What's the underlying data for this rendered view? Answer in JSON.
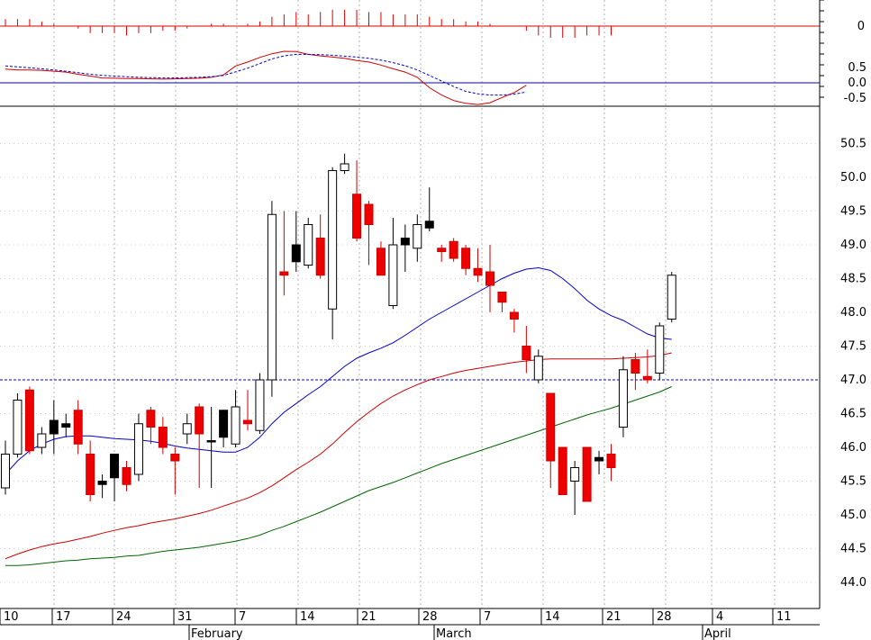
{
  "chart_data": [
    {
      "type": "bar",
      "panel": "histogram",
      "y_labels": [
        "0"
      ],
      "color": "#e00000",
      "values": [
        0.03,
        0.03,
        0.03,
        0.02,
        0.01,
        0,
        -0.01,
        -0.03,
        -0.03,
        -0.03,
        -0.04,
        -0.03,
        -0.03,
        -0.02,
        -0.02,
        -0.01,
        0,
        0.01,
        0.01,
        0,
        0.01,
        0.02,
        0.04,
        0.05,
        0.06,
        0.05,
        0.06,
        0.07,
        0.07,
        0.07,
        0.06,
        0.06,
        0.05,
        0.05,
        0.05,
        0.04,
        0.03,
        0.03,
        0.02,
        0.02,
        0.01,
        0,
        0,
        -0.02,
        -0.04,
        -0.05,
        -0.05,
        -0.05,
        -0.04,
        -0.04,
        -0.04
      ]
    },
    {
      "type": "line",
      "panel": "macd",
      "y_labels": [
        "0.5",
        "0.0",
        "-0.5"
      ],
      "ylim": [
        -1.3,
        1.5
      ],
      "series": [
        {
          "role": "macd",
          "color": "#cc0000",
          "values": [
            0.45,
            0.42,
            0.42,
            0.41,
            0.38,
            0.35,
            0.28,
            0.22,
            0.16,
            0.15,
            0.14,
            0.14,
            0.13,
            0.12,
            0.13,
            0.14,
            0.15,
            0.18,
            0.26,
            0.55,
            0.68,
            0.83,
            0.95,
            1.03,
            1.02,
            0.93,
            0.88,
            0.84,
            0.8,
            0.73,
            0.68,
            0.58,
            0.46,
            0.35,
            0.18,
            -0.16,
            -0.4,
            -0.58,
            -0.67,
            -0.71,
            -0.65,
            -0.48,
            -0.32,
            -0.08
          ]
        },
        {
          "role": "signal",
          "color": "#0000cc",
          "style": "dashed",
          "values": [
            0.55,
            0.52,
            0.49,
            0.46,
            0.42,
            0.38,
            0.33,
            0.28,
            0.24,
            0.22,
            0.2,
            0.18,
            0.17,
            0.16,
            0.16,
            0.17,
            0.18,
            0.2,
            0.24,
            0.36,
            0.48,
            0.63,
            0.78,
            0.88,
            0.93,
            0.93,
            0.92,
            0.9,
            0.87,
            0.84,
            0.8,
            0.74,
            0.66,
            0.56,
            0.42,
            0.24,
            0.06,
            -0.12,
            -0.28,
            -0.36,
            -0.4,
            -0.4,
            -0.37,
            -0.3
          ]
        }
      ]
    },
    {
      "type": "candlestick",
      "panel": "price",
      "x_tick_labels": [
        "10",
        "17",
        "24",
        "31",
        "7",
        "14",
        "21",
        "28",
        "7",
        "14",
        "21",
        "28",
        "4",
        "11"
      ],
      "month_labels": [
        "February",
        "March",
        "April"
      ],
      "y_tick_labels": [
        "44.0",
        "44.5",
        "45.0",
        "45.5",
        "46.0",
        "46.5",
        "47.0",
        "47.5",
        "48.0",
        "48.5",
        "49.0",
        "49.5",
        "50.0",
        "50.5"
      ],
      "ylim": [
        43.65,
        50.85
      ],
      "reference_line": {
        "y": 47.0,
        "color": "#0000cc",
        "style": "dotted"
      },
      "candles": [
        {
          "d": 0,
          "o": 45.4,
          "h": 46.1,
          "l": 45.3,
          "c": 45.9,
          "color": "white"
        },
        {
          "d": 1,
          "o": 45.9,
          "h": 46.8,
          "l": 45.85,
          "c": 46.7,
          "color": "white"
        },
        {
          "d": 2,
          "o": 46.85,
          "h": 46.9,
          "l": 45.9,
          "c": 45.95,
          "color": "red"
        },
        {
          "d": 3,
          "o": 46.0,
          "h": 46.3,
          "l": 45.9,
          "c": 46.2,
          "color": "white"
        },
        {
          "d": 4,
          "o": 46.4,
          "h": 46.7,
          "l": 45.9,
          "c": 46.2,
          "color": "black"
        },
        {
          "d": 5,
          "o": 46.35,
          "h": 46.5,
          "l": 46.15,
          "c": 46.3,
          "color": "black"
        },
        {
          "d": 6,
          "o": 46.55,
          "h": 46.7,
          "l": 45.9,
          "c": 46.05,
          "color": "red"
        },
        {
          "d": 7,
          "o": 45.9,
          "h": 46.1,
          "l": 45.2,
          "c": 45.3,
          "color": "red"
        },
        {
          "d": 8,
          "o": 45.5,
          "h": 45.6,
          "l": 45.25,
          "c": 45.45,
          "color": "black"
        },
        {
          "d": 9,
          "o": 45.9,
          "h": 45.9,
          "l": 45.2,
          "c": 45.55,
          "color": "black"
        },
        {
          "d": 10,
          "o": 45.7,
          "h": 45.8,
          "l": 45.35,
          "c": 45.45,
          "color": "red"
        },
        {
          "d": 11,
          "o": 45.6,
          "h": 46.5,
          "l": 45.5,
          "c": 46.35,
          "color": "white"
        },
        {
          "d": 12,
          "o": 46.55,
          "h": 46.6,
          "l": 46.05,
          "c": 46.3,
          "color": "red"
        },
        {
          "d": 13,
          "o": 46.3,
          "h": 46.45,
          "l": 45.9,
          "c": 46.0,
          "color": "red"
        },
        {
          "d": 14,
          "o": 45.9,
          "h": 46.0,
          "l": 45.3,
          "c": 45.8,
          "color": "red"
        },
        {
          "d": 15,
          "o": 46.2,
          "h": 46.5,
          "l": 46.05,
          "c": 46.35,
          "color": "white"
        },
        {
          "d": 16,
          "o": 46.6,
          "h": 46.65,
          "l": 45.4,
          "c": 46.2,
          "color": "red"
        },
        {
          "d": 17,
          "o": 46.1,
          "h": 46.6,
          "l": 45.4,
          "c": 46.1,
          "color": "black"
        },
        {
          "d": 18,
          "o": 46.55,
          "h": 46.55,
          "l": 46.0,
          "c": 46.15,
          "color": "black"
        },
        {
          "d": 19,
          "o": 46.05,
          "h": 46.85,
          "l": 46.0,
          "c": 46.6,
          "color": "white"
        },
        {
          "d": 20,
          "o": 46.4,
          "h": 46.85,
          "l": 46.25,
          "c": 46.35,
          "color": "red"
        },
        {
          "d": 21,
          "o": 46.25,
          "h": 47.1,
          "l": 46.2,
          "c": 47.0,
          "color": "white"
        },
        {
          "d": 22,
          "o": 47.0,
          "h": 49.65,
          "l": 46.75,
          "c": 49.45,
          "color": "white"
        },
        {
          "d": 23,
          "o": 48.6,
          "h": 49.5,
          "l": 48.25,
          "c": 48.55,
          "color": "red"
        },
        {
          "d": 24,
          "o": 49.0,
          "h": 49.5,
          "l": 48.6,
          "c": 48.75,
          "color": "black"
        },
        {
          "d": 25,
          "o": 48.7,
          "h": 49.4,
          "l": 48.65,
          "c": 49.3,
          "color": "white"
        },
        {
          "d": 26,
          "o": 49.1,
          "h": 49.45,
          "l": 48.5,
          "c": 48.55,
          "color": "red"
        },
        {
          "d": 27,
          "o": 48.05,
          "h": 50.15,
          "l": 47.6,
          "c": 50.1,
          "color": "white"
        },
        {
          "d": 28,
          "o": 50.1,
          "h": 50.35,
          "l": 50.05,
          "c": 50.2,
          "color": "white"
        },
        {
          "d": 29,
          "o": 49.75,
          "h": 50.25,
          "l": 49.05,
          "c": 49.1,
          "color": "red"
        },
        {
          "d": 30,
          "o": 49.6,
          "h": 49.65,
          "l": 48.7,
          "c": 49.3,
          "color": "red"
        },
        {
          "d": 31,
          "o": 48.95,
          "h": 49.05,
          "l": 48.55,
          "c": 48.55,
          "color": "red"
        },
        {
          "d": 32,
          "o": 48.1,
          "h": 49.4,
          "l": 48.05,
          "c": 49.0,
          "color": "white"
        },
        {
          "d": 33,
          "o": 49.1,
          "h": 49.3,
          "l": 48.6,
          "c": 49.0,
          "color": "black"
        },
        {
          "d": 34,
          "o": 48.95,
          "h": 49.45,
          "l": 48.75,
          "c": 49.3,
          "color": "white"
        },
        {
          "d": 35,
          "o": 49.35,
          "h": 49.85,
          "l": 49.2,
          "c": 49.25,
          "color": "black"
        },
        {
          "d": 36,
          "o": 48.95,
          "h": 49.0,
          "l": 48.75,
          "c": 48.9,
          "color": "red"
        },
        {
          "d": 37,
          "o": 49.05,
          "h": 49.1,
          "l": 48.75,
          "c": 48.8,
          "color": "red"
        },
        {
          "d": 38,
          "o": 48.95,
          "h": 49.0,
          "l": 48.55,
          "c": 48.65,
          "color": "red"
        },
        {
          "d": 39,
          "o": 48.65,
          "h": 48.95,
          "l": 48.45,
          "c": 48.55,
          "color": "red"
        },
        {
          "d": 40,
          "o": 48.6,
          "h": 49.0,
          "l": 48.0,
          "c": 48.4,
          "color": "red"
        },
        {
          "d": 41,
          "o": 48.3,
          "h": 48.3,
          "l": 48.0,
          "c": 48.15,
          "color": "red"
        },
        {
          "d": 42,
          "o": 48.0,
          "h": 48.05,
          "l": 47.7,
          "c": 47.9,
          "color": "red"
        },
        {
          "d": 43,
          "o": 47.5,
          "h": 47.8,
          "l": 47.1,
          "c": 47.3,
          "color": "red"
        },
        {
          "d": 44,
          "o": 47.0,
          "h": 47.45,
          "l": 46.95,
          "c": 47.35,
          "color": "white"
        },
        {
          "d": 45,
          "o": 46.8,
          "h": 46.8,
          "l": 45.4,
          "c": 45.8,
          "color": "red"
        },
        {
          "d": 46,
          "o": 46.0,
          "h": 46.0,
          "l": 45.3,
          "c": 45.3,
          "color": "red"
        },
        {
          "d": 47,
          "o": 45.5,
          "h": 45.8,
          "l": 45.0,
          "c": 45.7,
          "color": "white"
        },
        {
          "d": 48,
          "o": 46.0,
          "h": 46.0,
          "l": 45.2,
          "c": 45.2,
          "color": "red"
        },
        {
          "d": 49,
          "o": 45.85,
          "h": 45.95,
          "l": 45.6,
          "c": 45.8,
          "color": "black"
        },
        {
          "d": 50,
          "o": 45.9,
          "h": 46.05,
          "l": 45.5,
          "c": 45.7,
          "color": "red"
        },
        {
          "d": 51,
          "o": 46.3,
          "h": 47.35,
          "l": 46.15,
          "c": 47.15,
          "color": "white"
        },
        {
          "d": 52,
          "o": 47.3,
          "h": 47.4,
          "l": 46.85,
          "c": 47.1,
          "color": "red"
        },
        {
          "d": 53,
          "o": 47.05,
          "h": 47.45,
          "l": 46.95,
          "c": 47.0,
          "color": "red"
        },
        {
          "d": 54,
          "o": 47.1,
          "h": 47.85,
          "l": 47.0,
          "c": 47.8,
          "color": "white"
        },
        {
          "d": 55,
          "o": 47.9,
          "h": 48.6,
          "l": 47.85,
          "c": 48.55,
          "color": "white"
        }
      ],
      "overlays": [
        {
          "role": "short-average",
          "color": "#0000cc",
          "values": [
            45.6,
            45.8,
            45.95,
            46.05,
            46.12,
            46.16,
            46.17,
            46.17,
            46.15,
            46.13,
            46.12,
            46.11,
            46.09,
            46.06,
            46.02,
            45.99,
            45.97,
            45.95,
            45.93,
            45.93,
            46.0,
            46.15,
            46.35,
            46.52,
            46.65,
            46.78,
            46.9,
            47.05,
            47.2,
            47.32,
            47.4,
            47.47,
            47.55,
            47.66,
            47.78,
            47.9,
            48.0,
            48.1,
            48.2,
            48.3,
            48.4,
            48.5,
            48.58,
            48.64,
            48.66,
            48.62,
            48.5,
            48.35,
            48.18,
            48.05,
            47.95,
            47.88,
            47.78,
            47.68,
            47.62,
            47.6
          ]
        },
        {
          "role": "medium-average",
          "color": "#cc0000",
          "values": [
            44.35,
            44.42,
            44.48,
            44.53,
            44.57,
            44.6,
            44.64,
            44.68,
            44.73,
            44.77,
            44.81,
            44.84,
            44.88,
            44.91,
            44.94,
            44.98,
            45.02,
            45.07,
            45.13,
            45.19,
            45.25,
            45.33,
            45.43,
            45.55,
            45.67,
            45.78,
            45.9,
            46.05,
            46.22,
            46.38,
            46.52,
            46.65,
            46.76,
            46.85,
            46.93,
            47.0,
            47.05,
            47.1,
            47.14,
            47.17,
            47.2,
            47.23,
            47.26,
            47.28,
            47.3,
            47.31,
            47.31,
            47.31,
            47.31,
            47.31,
            47.31,
            47.32,
            47.33,
            47.34,
            47.36,
            47.4
          ]
        },
        {
          "role": "long-average",
          "color": "#006600",
          "values": [
            44.25,
            44.25,
            44.26,
            44.28,
            44.3,
            44.32,
            44.33,
            44.35,
            44.36,
            44.37,
            44.39,
            44.4,
            44.43,
            44.46,
            44.48,
            44.5,
            44.52,
            44.55,
            44.58,
            44.61,
            44.65,
            44.7,
            44.77,
            44.83,
            44.9,
            44.97,
            45.04,
            45.12,
            45.2,
            45.28,
            45.36,
            45.42,
            45.48,
            45.55,
            45.62,
            45.69,
            45.76,
            45.82,
            45.88,
            45.94,
            46.0,
            46.06,
            46.12,
            46.18,
            46.24,
            46.3,
            46.36,
            46.42,
            46.48,
            46.53,
            46.58,
            46.64,
            46.7,
            46.76,
            46.82,
            46.9
          ]
        }
      ]
    }
  ]
}
